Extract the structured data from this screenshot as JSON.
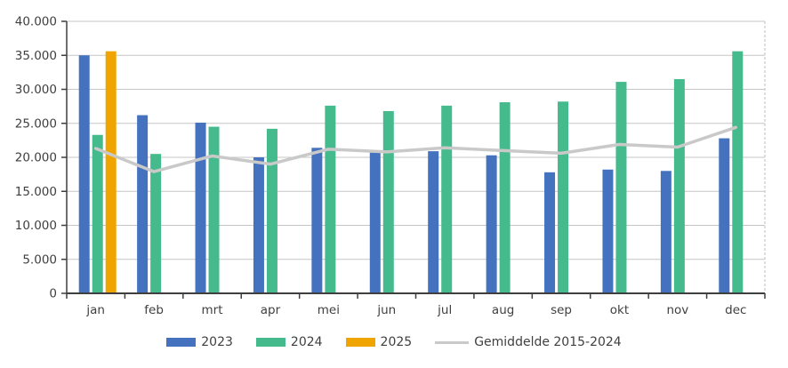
{
  "chart_data": {
    "type": "bar",
    "title": "",
    "xlabel": "",
    "ylabel": "",
    "categories": [
      "jan",
      "feb",
      "mrt",
      "apr",
      "mei",
      "jun",
      "jul",
      "aug",
      "sep",
      "okt",
      "nov",
      "dec"
    ],
    "series": [
      {
        "name": "2023",
        "kind": "bar",
        "color": "#4472BE",
        "values": [
          35000,
          26200,
          25100,
          20000,
          21400,
          20700,
          20900,
          20300,
          17800,
          18200,
          18000,
          22800
        ]
      },
      {
        "name": "2024",
        "kind": "bar",
        "color": "#45BA8D",
        "values": [
          23300,
          20500,
          24500,
          24200,
          27600,
          26800,
          27600,
          28100,
          28200,
          31100,
          31500,
          35600
        ]
      },
      {
        "name": "2025",
        "kind": "bar",
        "color": "#F0A400",
        "values": [
          35600,
          null,
          null,
          null,
          null,
          null,
          null,
          null,
          null,
          null,
          null,
          null
        ]
      },
      {
        "name": "Gemiddelde 2015-2024",
        "kind": "line",
        "color": "#C9C9C9",
        "values": [
          21300,
          17900,
          20200,
          19000,
          21200,
          20800,
          21400,
          21000,
          20600,
          21900,
          21500,
          24400
        ]
      }
    ],
    "ylim": [
      0,
      40000
    ],
    "ytick_step": 5000,
    "ytick_labels": [
      "0",
      "5.000",
      "10.000",
      "15.000",
      "20.000",
      "25.000",
      "30.000",
      "35.000",
      "40.000"
    ],
    "grid": true,
    "legend_position": "bottom"
  },
  "palette": {
    "grid": "#C6C6C6",
    "axis": "#3F3F3F",
    "text": "#3F3F3F",
    "plot_right_border": "#BFBFBF",
    "background": "#FFFFFF"
  }
}
